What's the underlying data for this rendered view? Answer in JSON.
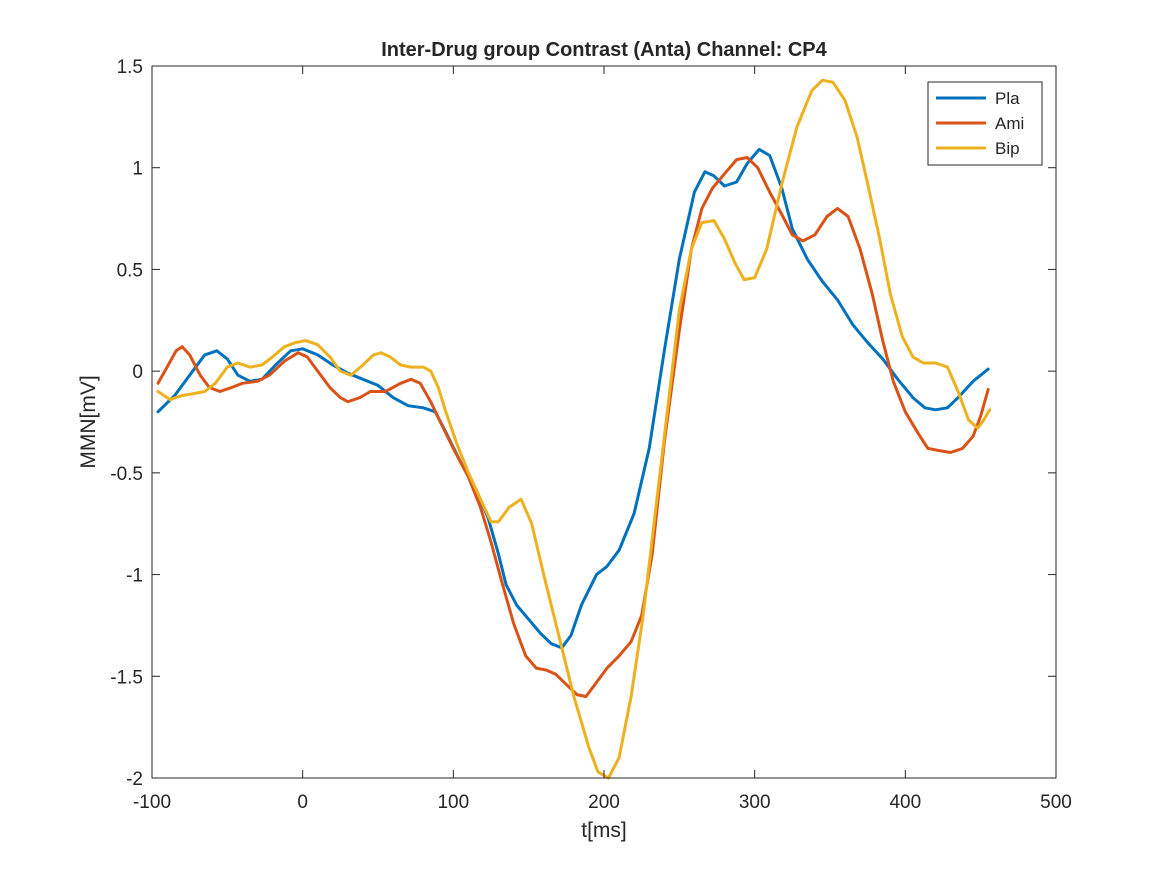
{
  "chart_data": {
    "type": "line",
    "title": "Inter-Drug group Contrast (Anta) Channel: CP4",
    "xlabel": "t[ms]",
    "ylabel": "MMN[mV]",
    "xlim": [
      -100,
      500
    ],
    "ylim": [
      -2,
      1.5
    ],
    "xticks": [
      -100,
      0,
      100,
      200,
      300,
      400,
      500
    ],
    "xtick_labels": [
      "-100",
      "0",
      "100",
      "200",
      "300",
      "400",
      "500"
    ],
    "yticks": [
      -2,
      -1.5,
      -1,
      -0.5,
      0,
      0.5,
      1,
      1.5
    ],
    "ytick_labels": [
      "-2",
      "-1.5",
      "-1",
      "-0.5",
      "0",
      "0.5",
      "1",
      "1.5"
    ],
    "grid": false,
    "legend_position": "top-right",
    "series": [
      {
        "name": "Pla",
        "color": "#0072BD",
        "points": [
          [
            -96,
            -0.2
          ],
          [
            -85,
            -0.12
          ],
          [
            -75,
            -0.02
          ],
          [
            -65,
            0.08
          ],
          [
            -57,
            0.1
          ],
          [
            -50,
            0.06
          ],
          [
            -43,
            -0.02
          ],
          [
            -35,
            -0.05
          ],
          [
            -27,
            -0.04
          ],
          [
            -18,
            0.03
          ],
          [
            -8,
            0.1
          ],
          [
            0,
            0.11
          ],
          [
            10,
            0.08
          ],
          [
            20,
            0.03
          ],
          [
            30,
            -0.01
          ],
          [
            40,
            -0.04
          ],
          [
            50,
            -0.07
          ],
          [
            60,
            -0.13
          ],
          [
            70,
            -0.17
          ],
          [
            80,
            -0.18
          ],
          [
            88,
            -0.2
          ],
          [
            95,
            -0.3
          ],
          [
            105,
            -0.45
          ],
          [
            115,
            -0.58
          ],
          [
            123,
            -0.72
          ],
          [
            130,
            -0.9
          ],
          [
            135,
            -1.05
          ],
          [
            142,
            -1.15
          ],
          [
            150,
            -1.22
          ],
          [
            158,
            -1.29
          ],
          [
            165,
            -1.34
          ],
          [
            172,
            -1.36
          ],
          [
            178,
            -1.3
          ],
          [
            185,
            -1.15
          ],
          [
            195,
            -1.0
          ],
          [
            202,
            -0.96
          ],
          [
            210,
            -0.88
          ],
          [
            220,
            -0.7
          ],
          [
            230,
            -0.38
          ],
          [
            240,
            0.1
          ],
          [
            250,
            0.55
          ],
          [
            260,
            0.88
          ],
          [
            267,
            0.98
          ],
          [
            273,
            0.96
          ],
          [
            280,
            0.91
          ],
          [
            288,
            0.93
          ],
          [
            295,
            1.02
          ],
          [
            303,
            1.09
          ],
          [
            310,
            1.06
          ],
          [
            318,
            0.9
          ],
          [
            325,
            0.7
          ],
          [
            335,
            0.55
          ],
          [
            345,
            0.44
          ],
          [
            355,
            0.35
          ],
          [
            365,
            0.23
          ],
          [
            375,
            0.14
          ],
          [
            385,
            0.06
          ],
          [
            395,
            -0.04
          ],
          [
            405,
            -0.13
          ],
          [
            413,
            -0.18
          ],
          [
            420,
            -0.19
          ],
          [
            428,
            -0.18
          ],
          [
            435,
            -0.13
          ],
          [
            445,
            -0.05
          ],
          [
            455,
            0.01
          ]
        ]
      },
      {
        "name": "Ami",
        "color": "#D95319",
        "points": [
          [
            -96,
            -0.06
          ],
          [
            -90,
            0.02
          ],
          [
            -84,
            0.1
          ],
          [
            -80,
            0.12
          ],
          [
            -75,
            0.08
          ],
          [
            -68,
            -0.02
          ],
          [
            -62,
            -0.08
          ],
          [
            -55,
            -0.1
          ],
          [
            -47,
            -0.08
          ],
          [
            -40,
            -0.06
          ],
          [
            -30,
            -0.05
          ],
          [
            -22,
            -0.02
          ],
          [
            -12,
            0.05
          ],
          [
            -3,
            0.09
          ],
          [
            3,
            0.07
          ],
          [
            10,
            0.0
          ],
          [
            18,
            -0.08
          ],
          [
            25,
            -0.13
          ],
          [
            30,
            -0.15
          ],
          [
            38,
            -0.13
          ],
          [
            45,
            -0.1
          ],
          [
            55,
            -0.1
          ],
          [
            65,
            -0.06
          ],
          [
            72,
            -0.04
          ],
          [
            78,
            -0.06
          ],
          [
            85,
            -0.15
          ],
          [
            92,
            -0.26
          ],
          [
            100,
            -0.38
          ],
          [
            110,
            -0.52
          ],
          [
            118,
            -0.67
          ],
          [
            125,
            -0.84
          ],
          [
            132,
            -1.03
          ],
          [
            140,
            -1.24
          ],
          [
            148,
            -1.4
          ],
          [
            155,
            -1.46
          ],
          [
            162,
            -1.47
          ],
          [
            168,
            -1.49
          ],
          [
            175,
            -1.54
          ],
          [
            182,
            -1.59
          ],
          [
            188,
            -1.6
          ],
          [
            195,
            -1.53
          ],
          [
            202,
            -1.46
          ],
          [
            210,
            -1.4
          ],
          [
            218,
            -1.33
          ],
          [
            225,
            -1.2
          ],
          [
            232,
            -0.9
          ],
          [
            240,
            -0.35
          ],
          [
            250,
            0.2
          ],
          [
            258,
            0.6
          ],
          [
            265,
            0.8
          ],
          [
            272,
            0.9
          ],
          [
            280,
            0.97
          ],
          [
            288,
            1.04
          ],
          [
            295,
            1.05
          ],
          [
            302,
            1.0
          ],
          [
            310,
            0.88
          ],
          [
            318,
            0.77
          ],
          [
            325,
            0.67
          ],
          [
            332,
            0.64
          ],
          [
            340,
            0.67
          ],
          [
            348,
            0.76
          ],
          [
            355,
            0.8
          ],
          [
            362,
            0.76
          ],
          [
            370,
            0.6
          ],
          [
            378,
            0.38
          ],
          [
            385,
            0.15
          ],
          [
            392,
            -0.05
          ],
          [
            400,
            -0.2
          ],
          [
            408,
            -0.3
          ],
          [
            415,
            -0.38
          ],
          [
            422,
            -0.39
          ],
          [
            430,
            -0.4
          ],
          [
            438,
            -0.38
          ],
          [
            445,
            -0.32
          ],
          [
            450,
            -0.22
          ],
          [
            455,
            -0.09
          ]
        ]
      },
      {
        "name": "Bip",
        "color": "#EDB120",
        "points": [
          [
            -96,
            -0.1
          ],
          [
            -88,
            -0.14
          ],
          [
            -80,
            -0.12
          ],
          [
            -72,
            -0.11
          ],
          [
            -65,
            -0.1
          ],
          [
            -58,
            -0.06
          ],
          [
            -50,
            0.02
          ],
          [
            -43,
            0.04
          ],
          [
            -35,
            0.02
          ],
          [
            -27,
            0.03
          ],
          [
            -20,
            0.07
          ],
          [
            -12,
            0.12
          ],
          [
            -5,
            0.14
          ],
          [
            2,
            0.15
          ],
          [
            10,
            0.13
          ],
          [
            18,
            0.07
          ],
          [
            25,
            0.0
          ],
          [
            32,
            -0.02
          ],
          [
            40,
            0.03
          ],
          [
            47,
            0.08
          ],
          [
            52,
            0.09
          ],
          [
            58,
            0.07
          ],
          [
            65,
            0.03
          ],
          [
            72,
            0.02
          ],
          [
            80,
            0.02
          ],
          [
            85,
            0.0
          ],
          [
            90,
            -0.08
          ],
          [
            95,
            -0.2
          ],
          [
            102,
            -0.35
          ],
          [
            110,
            -0.5
          ],
          [
            118,
            -0.63
          ],
          [
            125,
            -0.74
          ],
          [
            130,
            -0.74
          ],
          [
            137,
            -0.67
          ],
          [
            145,
            -0.63
          ],
          [
            152,
            -0.75
          ],
          [
            160,
            -1.0
          ],
          [
            170,
            -1.3
          ],
          [
            180,
            -1.6
          ],
          [
            190,
            -1.85
          ],
          [
            196,
            -1.97
          ],
          [
            203,
            -2.0
          ],
          [
            210,
            -1.9
          ],
          [
            218,
            -1.6
          ],
          [
            226,
            -1.2
          ],
          [
            234,
            -0.7
          ],
          [
            242,
            -0.2
          ],
          [
            250,
            0.3
          ],
          [
            258,
            0.6
          ],
          [
            265,
            0.73
          ],
          [
            273,
            0.74
          ],
          [
            280,
            0.65
          ],
          [
            287,
            0.53
          ],
          [
            293,
            0.45
          ],
          [
            300,
            0.46
          ],
          [
            308,
            0.6
          ],
          [
            318,
            0.92
          ],
          [
            328,
            1.2
          ],
          [
            338,
            1.38
          ],
          [
            345,
            1.43
          ],
          [
            352,
            1.42
          ],
          [
            360,
            1.33
          ],
          [
            368,
            1.15
          ],
          [
            375,
            0.92
          ],
          [
            383,
            0.65
          ],
          [
            390,
            0.38
          ],
          [
            398,
            0.17
          ],
          [
            405,
            0.07
          ],
          [
            412,
            0.04
          ],
          [
            420,
            0.04
          ],
          [
            428,
            0.02
          ],
          [
            435,
            -0.1
          ],
          [
            442,
            -0.24
          ],
          [
            448,
            -0.28
          ],
          [
            452,
            -0.24
          ],
          [
            456,
            -0.19
          ]
        ]
      }
    ]
  }
}
